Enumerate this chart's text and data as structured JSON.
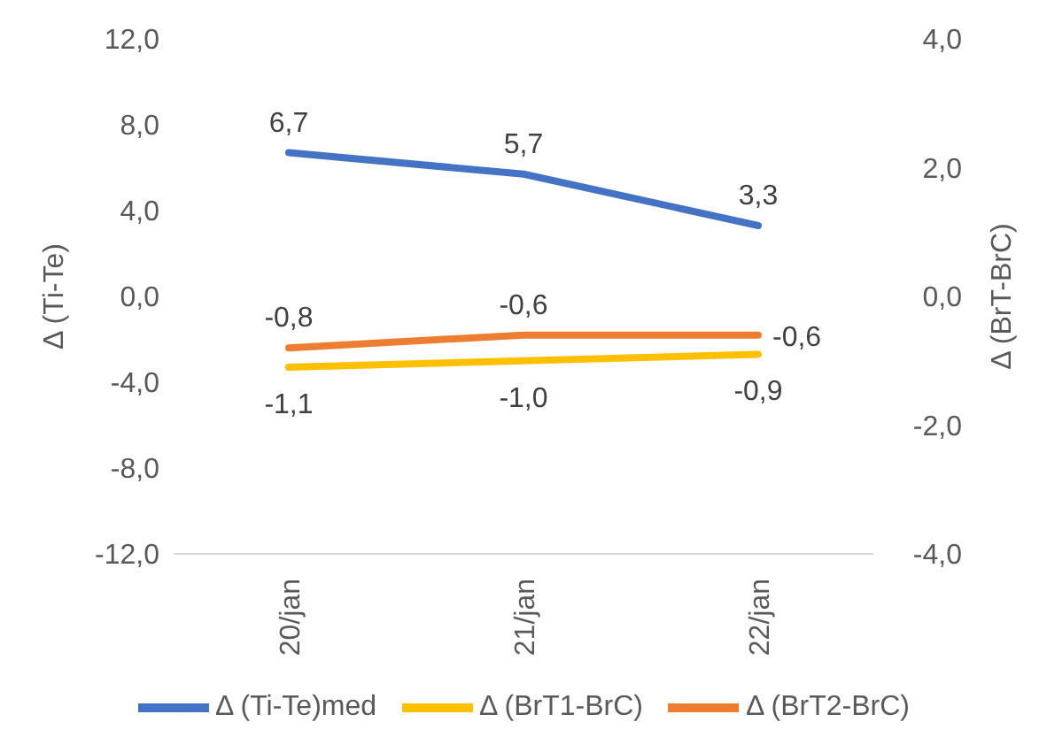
{
  "chart_data": {
    "type": "line",
    "categories": [
      "20/jan",
      "21/jan",
      "22/jan"
    ],
    "ylabel": "Δ (Ti-Te)",
    "y2label": "Δ (BrT-BrC)",
    "ylim": [
      -12,
      12
    ],
    "yticks": [
      {
        "value": -12,
        "label": "-12,0"
      },
      {
        "value": -8,
        "label": "-8,0"
      },
      {
        "value": -4,
        "label": "-4,0"
      },
      {
        "value": 0,
        "label": "0,0"
      },
      {
        "value": 4,
        "label": "4,0"
      },
      {
        "value": 8,
        "label": "8,0"
      },
      {
        "value": 12,
        "label": "12,0"
      }
    ],
    "y2lim": [
      -4,
      4
    ],
    "y2ticks": [
      {
        "value": -4,
        "label": "-4,0"
      },
      {
        "value": -2,
        "label": "-2,0"
      },
      {
        "value": 0,
        "label": "0,0"
      },
      {
        "value": 2,
        "label": "2,0"
      },
      {
        "value": 4,
        "label": "4,0"
      }
    ],
    "series": [
      {
        "name": "Δ (Ti-Te)med",
        "color": "#4472c4",
        "values": [
          6.7,
          5.7,
          3.3
        ],
        "value_labels": [
          "6,7",
          "5,7",
          "3,3"
        ]
      },
      {
        "name": "Δ (BrT1-BrC)",
        "color": "#ffc000",
        "axis": "y2",
        "values": [
          -1.1,
          -1.0,
          -0.9
        ],
        "value_labels": [
          "-1,1",
          "-1,0",
          "-0,9"
        ]
      },
      {
        "name": "Δ (BrT2-BrC)",
        "color": "#ed7d31",
        "axis": "y2",
        "values": [
          -0.8,
          -0.6,
          -0.6
        ],
        "value_labels": [
          "-0,8",
          "-0,6",
          "-0,6"
        ]
      }
    ],
    "grid": false,
    "legend": "bottom",
    "marker": "none",
    "line_style": "solid"
  }
}
